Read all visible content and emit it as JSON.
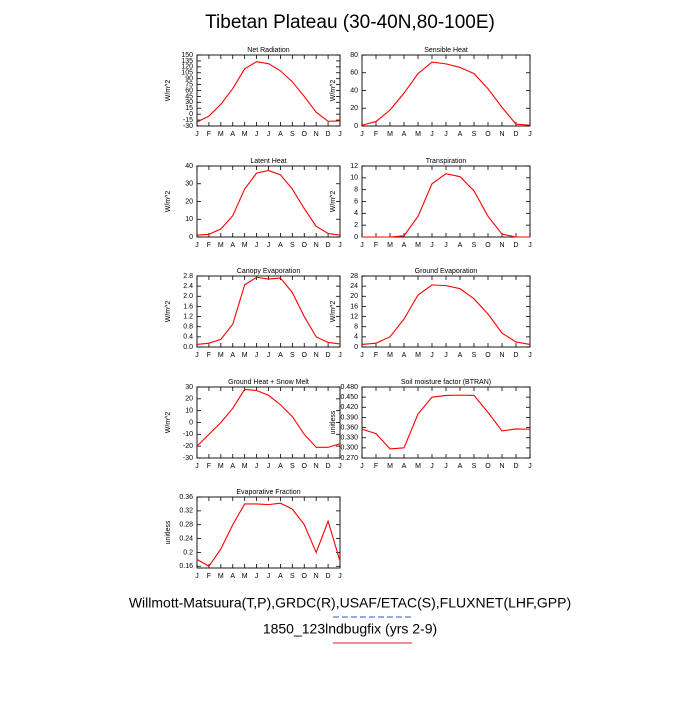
{
  "title": "Tibetan Plateau (30-40N,80-100E)",
  "chart_data": [
    {
      "type": "line",
      "title": "Net Radiation",
      "ylabel": "W/m^2",
      "categories": [
        "J",
        "F",
        "M",
        "A",
        "M",
        "J",
        "J",
        "A",
        "S",
        "O",
        "N",
        "D",
        "J"
      ],
      "values": [
        -20,
        -5,
        25,
        65,
        115,
        133,
        128,
        110,
        82,
        45,
        5,
        -18,
        -17
      ],
      "color": "#ff0000",
      "ylim": [
        -30,
        150
      ],
      "yticks": [
        -30,
        -15,
        0,
        15,
        30,
        45,
        60,
        75,
        90,
        105,
        120,
        135,
        150
      ]
    },
    {
      "type": "line",
      "title": "Sensible Heat",
      "ylabel": "W/m^2",
      "categories": [
        "J",
        "F",
        "M",
        "A",
        "M",
        "J",
        "J",
        "A",
        "S",
        "O",
        "N",
        "D",
        "J"
      ],
      "values": [
        1,
        5,
        18,
        37,
        59,
        72,
        70,
        66,
        59,
        42,
        21,
        2,
        1
      ],
      "color": "#ff0000",
      "ylim": [
        0,
        80
      ],
      "yticks": [
        0,
        20,
        40,
        60,
        80
      ]
    },
    {
      "type": "line",
      "title": "Latent Heat",
      "ylabel": "W/m^2",
      "categories": [
        "J",
        "F",
        "M",
        "A",
        "M",
        "J",
        "J",
        "A",
        "S",
        "O",
        "N",
        "D",
        "J"
      ],
      "values": [
        1,
        1.5,
        4.5,
        12,
        27,
        36,
        37.5,
        35,
        27,
        16,
        6,
        2,
        1
      ],
      "color": "#ff0000",
      "ylim": [
        0,
        40
      ],
      "yticks": [
        0,
        10,
        20,
        30,
        40
      ]
    },
    {
      "type": "line",
      "title": "Transpiration",
      "ylabel": "W/m^2",
      "categories": [
        "J",
        "F",
        "M",
        "A",
        "M",
        "J",
        "J",
        "A",
        "S",
        "O",
        "N",
        "D",
        "J"
      ],
      "values": [
        0,
        0,
        0,
        0.2,
        3.5,
        9,
        10.7,
        10.2,
        7.8,
        3.5,
        0.5,
        0,
        0
      ],
      "color": "#ff0000",
      "ylim": [
        0,
        12
      ],
      "yticks": [
        0,
        2,
        4,
        6,
        8,
        10,
        12
      ]
    },
    {
      "type": "line",
      "title": "Canopy Evaporation",
      "ylabel": "W/m^2",
      "categories": [
        "J",
        "F",
        "M",
        "A",
        "M",
        "J",
        "J",
        "A",
        "S",
        "O",
        "N",
        "D",
        "J"
      ],
      "values": [
        0.1,
        0.15,
        0.3,
        0.9,
        2.45,
        2.75,
        2.68,
        2.72,
        2.15,
        1.2,
        0.4,
        0.18,
        0.12
      ],
      "color": "#ff0000",
      "ylim": [
        0,
        2.8
      ],
      "yticks": [
        {
          "value": 0,
          "label": "0.0"
        },
        0.4,
        0.8,
        1.2,
        1.6,
        {
          "value": 2,
          "label": "2.0"
        },
        2.4,
        2.8
      ]
    },
    {
      "type": "line",
      "title": "Ground Evaporation",
      "ylabel": "W/m^2",
      "categories": [
        "J",
        "F",
        "M",
        "A",
        "M",
        "J",
        "J",
        "A",
        "S",
        "O",
        "N",
        "D",
        "J"
      ],
      "values": [
        1,
        1.5,
        4,
        11,
        20.5,
        24.5,
        24.2,
        23,
        19,
        13,
        5.5,
        2,
        1
      ],
      "color": "#ff0000",
      "ylim": [
        0,
        28
      ],
      "yticks": [
        0,
        4,
        8,
        12,
        16,
        20,
        24,
        28
      ]
    },
    {
      "type": "line",
      "title": "Ground Heat + Snow Melt",
      "ylabel": "W/m^2",
      "categories": [
        "J",
        "F",
        "M",
        "A",
        "M",
        "J",
        "J",
        "A",
        "S",
        "O",
        "N",
        "D",
        "J"
      ],
      "values": [
        -20,
        -10,
        0,
        12,
        28,
        27,
        23,
        15,
        5,
        -10,
        -21,
        -21,
        -18
      ],
      "color": "#ff0000",
      "ylim": [
        -30,
        30
      ],
      "yticks": [
        -30,
        -20,
        -10,
        0,
        10,
        20,
        30
      ]
    },
    {
      "type": "line",
      "title": "Soil moisture factor (BTRAN)",
      "ylabel": "unitless",
      "categories": [
        "J",
        "F",
        "M",
        "A",
        "M",
        "J",
        "J",
        "A",
        "S",
        "O",
        "N",
        "D",
        "J"
      ],
      "values": [
        0.355,
        0.342,
        0.297,
        0.3,
        0.4,
        0.45,
        0.455,
        0.456,
        0.455,
        0.405,
        0.35,
        0.356,
        0.355
      ],
      "color": "#ff0000",
      "ylim": [
        0.27,
        0.48
      ],
      "yticks": [
        {
          "value": 0.27,
          "label": "0.270"
        },
        {
          "value": 0.3,
          "label": "0.300"
        },
        {
          "value": 0.33,
          "label": "0.330"
        },
        {
          "value": 0.36,
          "label": "0.360"
        },
        {
          "value": 0.39,
          "label": "0.390"
        },
        {
          "value": 0.42,
          "label": "0.420"
        },
        {
          "value": 0.45,
          "label": "0.450"
        },
        {
          "value": 0.48,
          "label": "0.480"
        }
      ]
    },
    {
      "type": "line",
      "title": "Evaporative Fraction",
      "ylabel": "unitless",
      "categories": [
        "J",
        "F",
        "M",
        "A",
        "M",
        "J",
        "J",
        "A",
        "S",
        "O",
        "N",
        "D",
        "J"
      ],
      "values": [
        0.18,
        0.16,
        0.21,
        0.28,
        0.34,
        0.34,
        0.338,
        0.342,
        0.325,
        0.28,
        0.2,
        0.29,
        0.175
      ],
      "color": "#ff0000",
      "ylim": [
        0.155,
        0.36
      ],
      "yticks": [
        0.16,
        0.2,
        0.24,
        0.28,
        0.32,
        0.36
      ]
    }
  ],
  "footer": [
    "Willmott-Matsuura(T,P),GRDC(R),USAF/ETAC(S),FLUXNET(LHF,GPP)",
    "1850_123lndbugfix (yrs 2-9)"
  ]
}
